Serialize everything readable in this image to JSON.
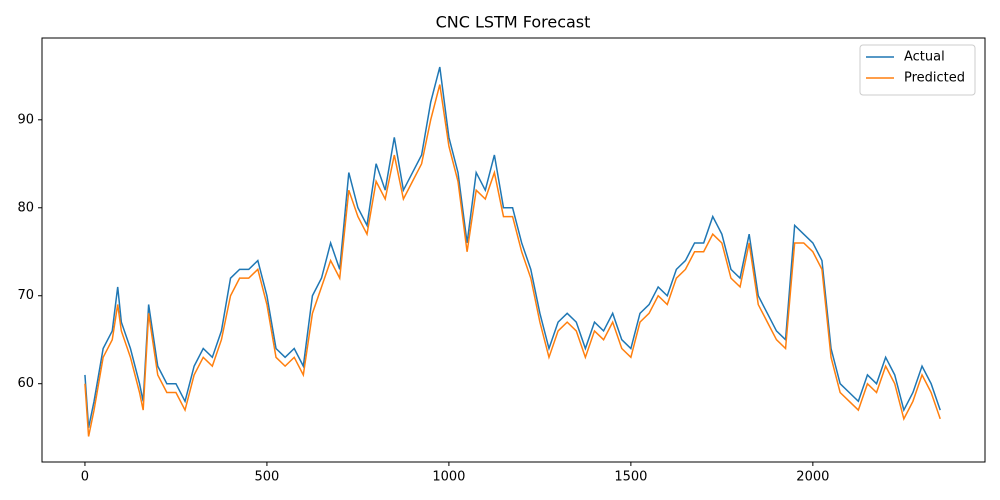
{
  "chart_data": {
    "type": "line",
    "title": "CNC LSTM Forecast",
    "x": [
      0,
      10,
      25,
      50,
      75,
      90,
      100,
      125,
      150,
      160,
      175,
      200,
      225,
      250,
      275,
      300,
      325,
      350,
      375,
      400,
      425,
      450,
      475,
      500,
      525,
      550,
      575,
      600,
      625,
      650,
      675,
      700,
      725,
      750,
      775,
      800,
      825,
      850,
      875,
      900,
      925,
      950,
      975,
      1000,
      1025,
      1050,
      1075,
      1100,
      1125,
      1150,
      1175,
      1200,
      1225,
      1250,
      1275,
      1300,
      1325,
      1350,
      1375,
      1400,
      1425,
      1450,
      1475,
      1500,
      1525,
      1550,
      1575,
      1600,
      1625,
      1650,
      1675,
      1700,
      1725,
      1750,
      1775,
      1800,
      1825,
      1850,
      1875,
      1900,
      1925,
      1950,
      1975,
      2000,
      2025,
      2050,
      2075,
      2100,
      2125,
      2150,
      2175,
      2200,
      2225,
      2250,
      2275,
      2300,
      2325,
      2350
    ],
    "series": [
      {
        "name": "Actual",
        "color": "#1f77b4",
        "values": [
          61,
          55,
          58,
          64,
          66,
          71,
          67,
          64,
          60,
          58,
          69,
          62,
          60,
          60,
          58,
          62,
          64,
          63,
          66,
          72,
          73,
          73,
          74,
          70,
          64,
          63,
          64,
          62,
          70,
          72,
          76,
          73,
          84,
          80,
          78,
          85,
          82,
          88,
          82,
          84,
          86,
          92,
          96,
          88,
          84,
          76,
          84,
          82,
          86,
          80,
          80,
          76,
          73,
          68,
          64,
          67,
          68,
          67,
          64,
          67,
          66,
          68,
          65,
          64,
          68,
          69,
          71,
          70,
          73,
          74,
          76,
          76,
          79,
          77,
          73,
          72,
          77,
          70,
          68,
          66,
          65,
          78,
          77,
          76,
          74,
          64,
          60,
          59,
          58,
          61,
          60,
          63,
          61,
          57,
          59,
          62,
          60,
          57
        ]
      },
      {
        "name": "Predicted",
        "color": "#ff7f0e",
        "values": [
          60,
          54,
          57,
          63,
          65,
          69,
          66,
          63,
          59,
          57,
          68,
          61,
          59,
          59,
          57,
          61,
          63,
          62,
          65,
          70,
          72,
          72,
          73,
          69,
          63,
          62,
          63,
          61,
          68,
          71,
          74,
          72,
          82,
          79,
          77,
          83,
          81,
          86,
          81,
          83,
          85,
          90,
          94,
          87,
          83,
          75,
          82,
          81,
          84,
          79,
          79,
          75,
          72,
          67,
          63,
          66,
          67,
          66,
          63,
          66,
          65,
          67,
          64,
          63,
          67,
          68,
          70,
          69,
          72,
          73,
          75,
          75,
          77,
          76,
          72,
          71,
          76,
          69,
          67,
          65,
          64,
          76,
          76,
          75,
          73,
          63,
          59,
          58,
          57,
          60,
          59,
          62,
          60,
          56,
          58,
          61,
          59,
          56
        ]
      }
    ],
    "xlim": [
      -118,
      2473
    ],
    "ylim": [
      51.1,
      99.3
    ],
    "xticks": [
      0,
      500,
      1000,
      1500,
      2000
    ],
    "yticks": [
      60,
      70,
      80,
      90
    ],
    "legend": "upper right"
  }
}
